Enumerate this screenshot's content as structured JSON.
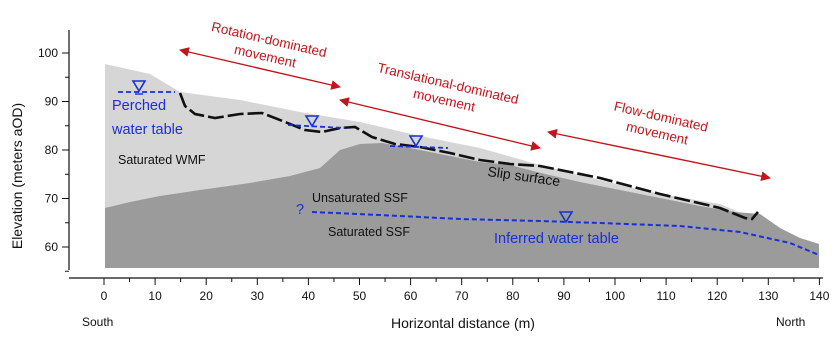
{
  "axes": {
    "y_title": "Elevation (meters aOD)",
    "x_title": "Horizontal distance (m)",
    "x_ticks": [
      "0",
      "10",
      "20",
      "30",
      "40",
      "50",
      "60",
      "70",
      "80",
      "90",
      "100",
      "110",
      "120",
      "130",
      "140"
    ],
    "y_ticks": [
      "60",
      "70",
      "80",
      "90",
      "100"
    ],
    "direction_left": "South",
    "direction_right": "North"
  },
  "labels": {
    "perched_line1": "Perched",
    "perched_line2": "water table",
    "saturated_wmf": "Saturated WMF",
    "unsaturated_ssf": "Unsaturated SSF",
    "saturated_ssf": "Saturated SSF",
    "slip_surface": "Slip surface",
    "inferred_water_table": "Inferred water table",
    "question_mark": "?"
  },
  "movements": {
    "rotation": [
      "Rotation-dominated",
      "movement"
    ],
    "translation": [
      "Translational-dominated",
      "movement"
    ],
    "flow": [
      "Flow-dominated",
      "movement"
    ]
  },
  "colors": {
    "wmf_fill": "#d6d6d6",
    "ssf_fill": "#9b9b9b",
    "water_blue": "#1a2fd8",
    "movement_red": "#c4151c",
    "slip_black": "#111111"
  }
}
